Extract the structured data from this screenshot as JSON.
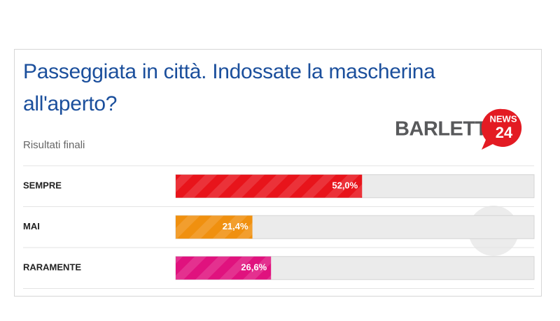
{
  "chart_data": {
    "type": "bar",
    "orientation": "horizontal",
    "title": "Passeggiata in città. Indossate la mascherina all'aperto?",
    "subtitle": "Risultati finali",
    "categories": [
      "SEMPRE",
      "MAI",
      "RARAMENTE"
    ],
    "values": [
      52.0,
      21.4,
      26.6
    ],
    "value_labels": [
      "52,0%",
      "21,4%",
      "26,6%"
    ],
    "colors": [
      "#e8141b",
      "#f0900f",
      "#e0127e"
    ],
    "xlim": [
      0,
      100
    ]
  },
  "logo": {
    "name": "BARLETTA",
    "badge_top": "NEWS",
    "badge_bottom": "24"
  }
}
